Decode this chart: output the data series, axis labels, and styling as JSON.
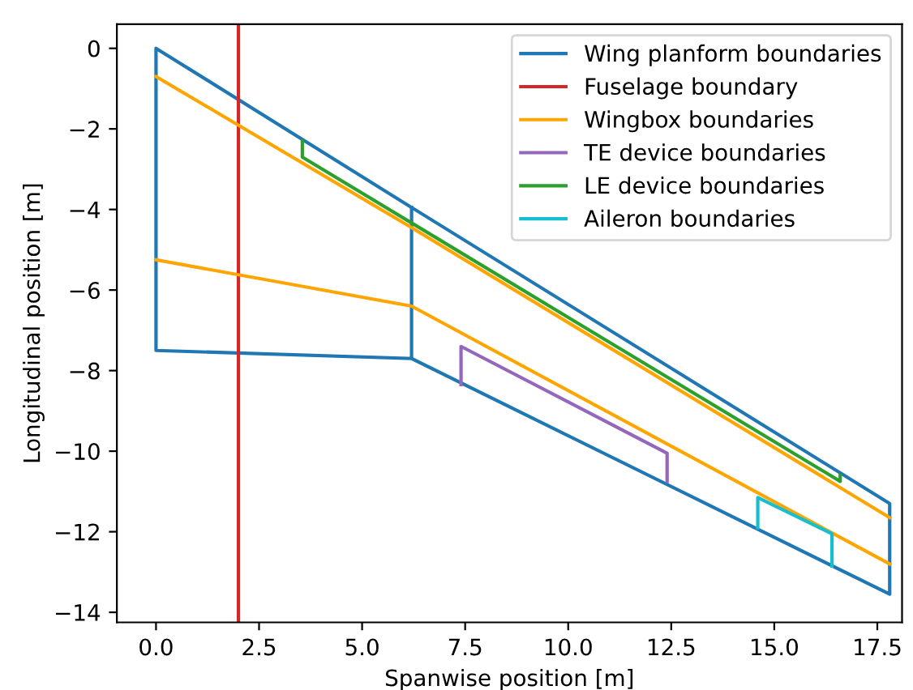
{
  "chart_data": {
    "type": "line",
    "xlabel": "Spanwise position [m]",
    "ylabel": "Longitudinal position [m]",
    "xlim": [
      -0.95,
      18.1
    ],
    "ylim": [
      -14.25,
      0.6
    ],
    "xticks": [
      {
        "value": 0,
        "label": "0.0"
      },
      {
        "value": 2.5,
        "label": "2.5"
      },
      {
        "value": 5,
        "label": "5.0"
      },
      {
        "value": 7.5,
        "label": "7.5"
      },
      {
        "value": 10,
        "label": "10.0"
      },
      {
        "value": 12.5,
        "label": "12.5"
      },
      {
        "value": 15,
        "label": "15.0"
      },
      {
        "value": 17.5,
        "label": "17.5"
      }
    ],
    "yticks": [
      {
        "value": 0,
        "label": "0"
      },
      {
        "value": -2,
        "label": "−2"
      },
      {
        "value": -4,
        "label": "−4"
      },
      {
        "value": -6,
        "label": "−6"
      },
      {
        "value": -8,
        "label": "−8"
      },
      {
        "value": -10,
        "label": "−10"
      },
      {
        "value": -12,
        "label": "−12"
      },
      {
        "value": -14,
        "label": "−14"
      }
    ],
    "grid": false,
    "legend": "top right",
    "marker": "none",
    "line_style": "solid",
    "series": [
      {
        "name": "Wing planform boundaries",
        "color": "#1f77b4",
        "x": [
          6.2,
          6.2,
          17.8,
          17.8,
          6.2,
          0,
          0,
          6.2
        ],
        "values": [
          -3.95,
          -7.7,
          -13.55,
          -11.3,
          -3.95,
          0,
          -7.5,
          -7.7
        ]
      },
      {
        "name": "Fuselage boundary",
        "color": "#d62728",
        "x": [
          2,
          2
        ],
        "values": [
          -14.25,
          0.6
        ]
      },
      {
        "name": "Wingbox boundaries",
        "color": "#ffa500",
        "x": [
          0,
          6.2,
          17.8
        ],
        "values": [
          -0.7,
          -4.45,
          -11.65
        ]
      },
      {
        "color": "#ffa500",
        "x": [
          0,
          6.2,
          17.8
        ],
        "values": [
          -5.25,
          -6.4,
          -12.8
        ]
      },
      {
        "name": "TE device boundaries",
        "color": "#9467bd",
        "x": [
          7.4,
          7.4,
          12.4,
          12.4
        ],
        "values": [
          -8.35,
          -7.4,
          -10.05,
          -10.75
        ]
      },
      {
        "name": "LE device boundaries",
        "color": "#2ca02c",
        "x": [
          3.55,
          3.55,
          16.6,
          16.6
        ],
        "values": [
          -2.3,
          -2.7,
          -10.75,
          -10.6
        ]
      },
      {
        "name": "Aileron boundaries",
        "color": "#17becf",
        "x": [
          14.6,
          14.6,
          16.4,
          16.4
        ],
        "values": [
          -11.9,
          -11.15,
          -12.05,
          -12.85
        ]
      }
    ]
  }
}
